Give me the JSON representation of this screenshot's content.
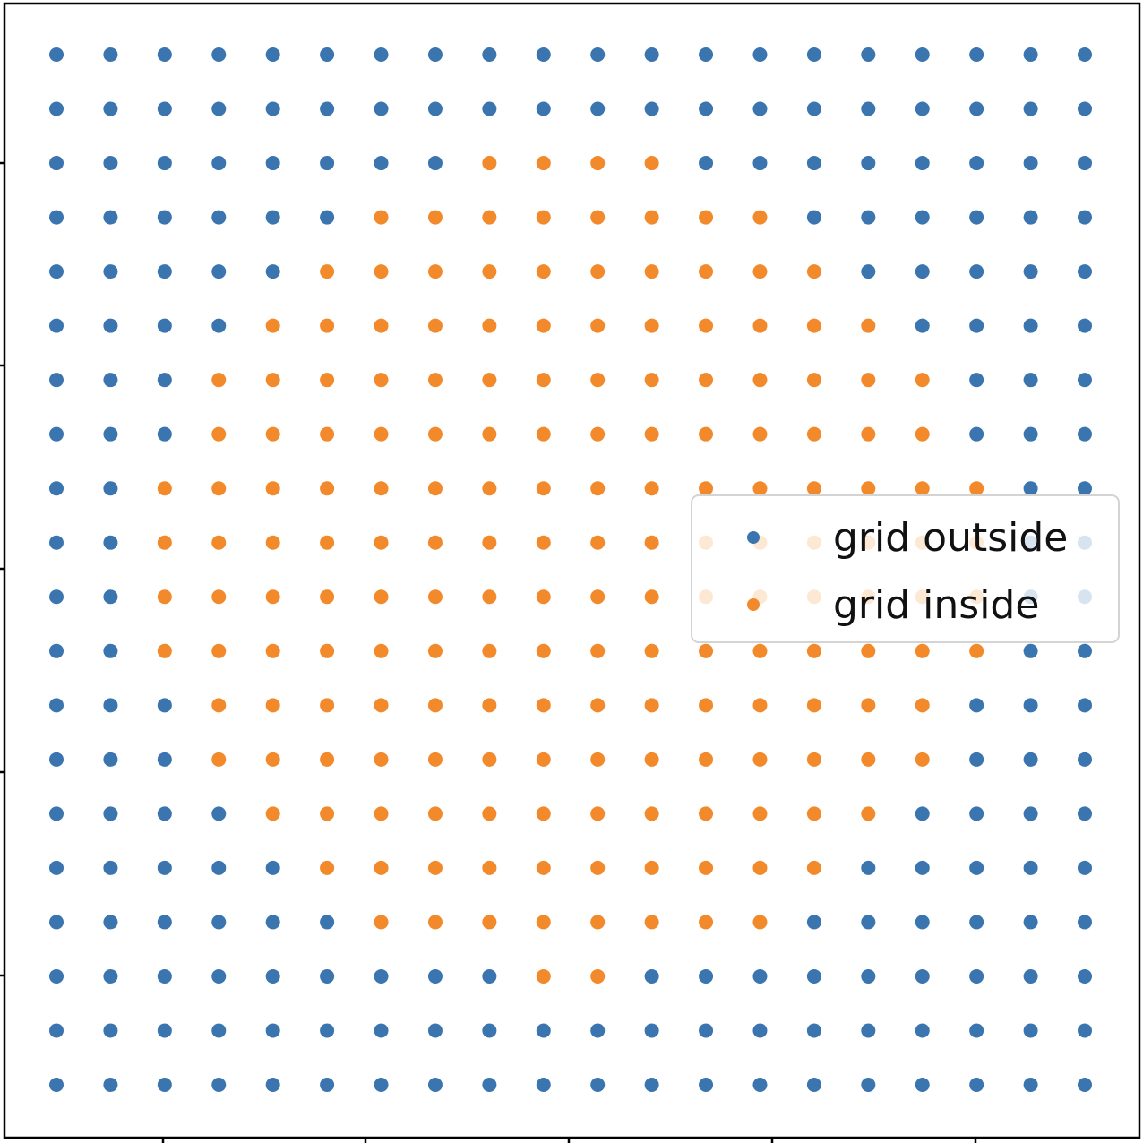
{
  "chart_data": {
    "type": "scatter",
    "title": "",
    "xlabel": "",
    "ylabel": "",
    "grid": false,
    "legend_position": "center-right",
    "axis_ticks_labeled": false,
    "grid_size": 20,
    "marker_shape": "circle",
    "colors": {
      "grid outside": "#3a75b0",
      "grid inside": "#f28a2c"
    },
    "series": [
      {
        "name": "grid outside",
        "color": "#3a75b0"
      },
      {
        "name": "grid inside",
        "color": "#f28a2c",
        "inside_index_ranges_by_row": [
          null,
          null,
          [
            8,
            11
          ],
          [
            6,
            13
          ],
          [
            5,
            14
          ],
          [
            4,
            15
          ],
          [
            3,
            16
          ],
          [
            3,
            16
          ],
          [
            2,
            17
          ],
          [
            2,
            17
          ],
          [
            2,
            17
          ],
          [
            2,
            17
          ],
          [
            3,
            16
          ],
          [
            3,
            16
          ],
          [
            4,
            15
          ],
          [
            5,
            14
          ],
          [
            6,
            13
          ],
          [
            9,
            10
          ],
          null,
          null
        ]
      }
    ]
  }
}
